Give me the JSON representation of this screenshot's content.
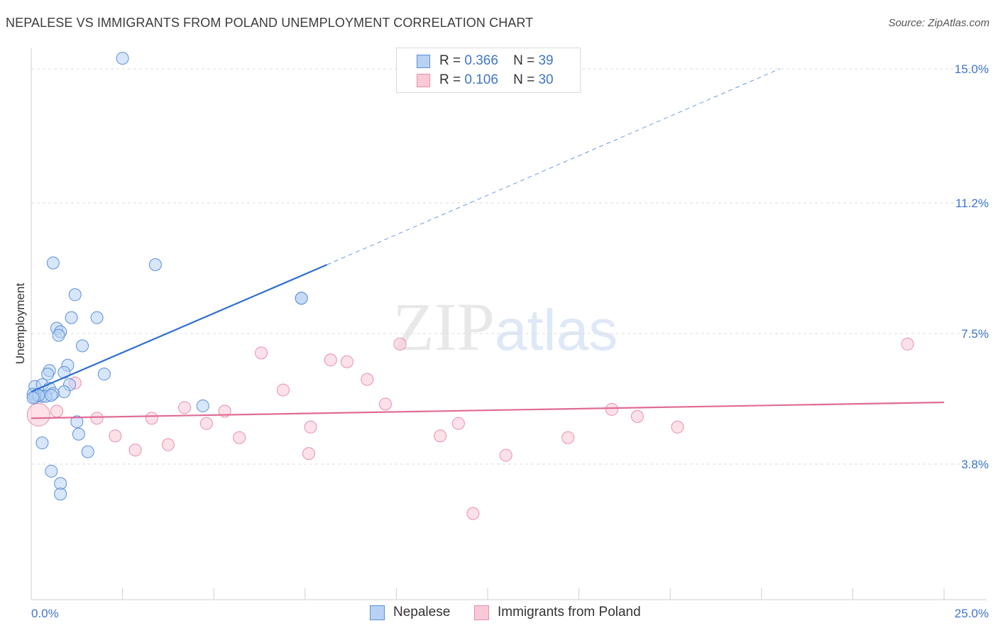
{
  "header": {
    "title": "NEPALESE VS IMMIGRANTS FROM POLAND UNEMPLOYMENT CORRELATION CHART",
    "source": "Source: ZipAtlas.com"
  },
  "watermark": {
    "zip": "ZIP",
    "atlas": "atlas"
  },
  "legend_top": {
    "rows": [
      {
        "r_label": "R =",
        "r_value": "0.366",
        "n_label": "N =",
        "n_value": "39"
      },
      {
        "r_label": "R =",
        "r_value": "0.106",
        "n_label": "N =",
        "n_value": "30"
      }
    ]
  },
  "legend_bottom": {
    "items": [
      "Nepalese",
      "Immigrants from Poland"
    ]
  },
  "colors": {
    "nepalese_fill": "#b8d2f4",
    "nepalese_stroke": "#5a8fd8",
    "nepalese_line": "#2e6fcf",
    "poland_fill": "#f9c9d7",
    "poland_stroke": "#e98fac",
    "poland_line": "#e06b95",
    "tick": "#3f76c8",
    "grid": "#dddddd"
  },
  "chart_data": {
    "type": "scatter",
    "title": "NEPALESE VS IMMIGRANTS FROM POLAND UNEMPLOYMENT CORRELATION CHART",
    "xlabel": "",
    "ylabel": "Unemployment",
    "xlim": [
      0,
      25
    ],
    "ylim": [
      0,
      15.5
    ],
    "x_tick_labels": [
      {
        "value": 0,
        "label": "0.0%"
      },
      {
        "value": 25,
        "label": "25.0%"
      }
    ],
    "y_tick_labels": [
      {
        "value": 3.8,
        "label": "3.8%"
      },
      {
        "value": 7.5,
        "label": "7.5%"
      },
      {
        "value": 11.2,
        "label": "11.2%"
      },
      {
        "value": 15.0,
        "label": "15.0%"
      }
    ],
    "grid": true,
    "legend_position": "top-center",
    "series": [
      {
        "name": "Nepalese",
        "R": 0.366,
        "N": 39,
        "trend": {
          "x0": 0.0,
          "y0": 5.85,
          "x1": 8.1,
          "y1": 9.45,
          "dashed_to_x": 20.5,
          "dashed_to_y": 15.0
        },
        "points": [
          [
            2.5,
            15.3
          ],
          [
            0.6,
            9.5
          ],
          [
            3.4,
            9.45
          ],
          [
            1.2,
            8.6
          ],
          [
            7.4,
            8.5
          ],
          [
            7.4,
            8.5
          ],
          [
            1.1,
            7.95
          ],
          [
            1.8,
            7.95
          ],
          [
            0.7,
            7.65
          ],
          [
            0.8,
            7.55
          ],
          [
            0.75,
            7.45
          ],
          [
            1.4,
            7.15
          ],
          [
            1.0,
            6.6
          ],
          [
            0.5,
            6.45
          ],
          [
            0.45,
            6.35
          ],
          [
            0.9,
            6.4
          ],
          [
            2.0,
            6.35
          ],
          [
            1.05,
            6.05
          ],
          [
            0.1,
            6.0
          ],
          [
            0.3,
            6.05
          ],
          [
            0.5,
            5.95
          ],
          [
            0.9,
            5.85
          ],
          [
            0.6,
            5.8
          ],
          [
            0.05,
            5.78
          ],
          [
            0.15,
            5.75
          ],
          [
            0.3,
            5.72
          ],
          [
            0.4,
            5.72
          ],
          [
            0.55,
            5.75
          ],
          [
            0.1,
            5.7
          ],
          [
            0.2,
            5.75
          ],
          [
            0.05,
            5.68
          ],
          [
            4.7,
            5.45
          ],
          [
            1.25,
            5.0
          ],
          [
            1.3,
            4.65
          ],
          [
            0.3,
            4.4
          ],
          [
            1.55,
            4.15
          ],
          [
            0.55,
            3.6
          ],
          [
            0.8,
            3.25
          ],
          [
            0.8,
            2.95
          ]
        ]
      },
      {
        "name": "Immigrants from Poland",
        "R": 0.106,
        "N": 30,
        "trend": {
          "x0": 0.0,
          "y0": 5.1,
          "x1": 25.0,
          "y1": 5.55
        },
        "points": [
          [
            0.2,
            5.2
          ],
          [
            0.7,
            5.3
          ],
          [
            1.2,
            6.1
          ],
          [
            1.8,
            5.1
          ],
          [
            2.3,
            4.6
          ],
          [
            2.85,
            4.2
          ],
          [
            3.3,
            5.1
          ],
          [
            3.75,
            4.35
          ],
          [
            4.2,
            5.4
          ],
          [
            4.8,
            4.95
          ],
          [
            5.3,
            5.3
          ],
          [
            5.7,
            4.55
          ],
          [
            6.3,
            6.95
          ],
          [
            6.9,
            5.9
          ],
          [
            7.6,
            4.1
          ],
          [
            7.65,
            4.85
          ],
          [
            8.2,
            6.75
          ],
          [
            8.65,
            6.7
          ],
          [
            9.2,
            6.2
          ],
          [
            9.7,
            5.5
          ],
          [
            10.1,
            7.2
          ],
          [
            11.2,
            4.6
          ],
          [
            11.7,
            4.95
          ],
          [
            12.1,
            2.4
          ],
          [
            13.0,
            4.05
          ],
          [
            14.7,
            4.55
          ],
          [
            15.9,
            5.35
          ],
          [
            16.6,
            5.15
          ],
          [
            17.7,
            4.85
          ],
          [
            24.0,
            7.2
          ]
        ]
      }
    ]
  }
}
